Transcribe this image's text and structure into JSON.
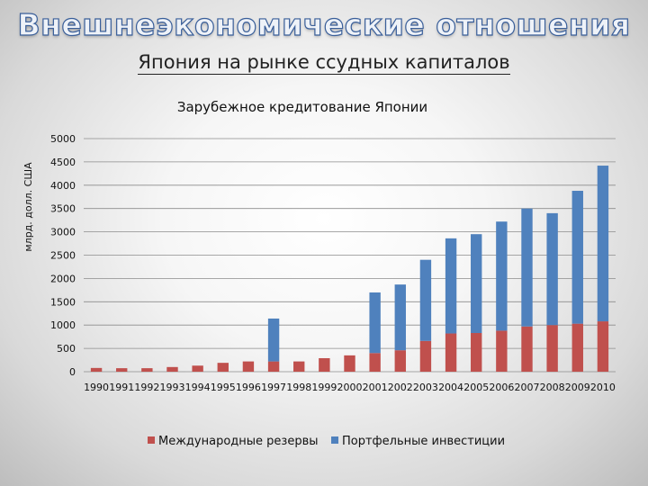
{
  "slide": {
    "title": "Внешнеэкономические отношения",
    "subtitle": "Япония на рынке ссудных капиталов"
  },
  "colors": {
    "reserves": "#c0504d",
    "investments": "#4f81bd",
    "grid": "#8c8c8c",
    "title_fill": "#eef2f8",
    "title_stroke": "#3a5f9a"
  },
  "chart_data": {
    "type": "bar",
    "stacked": true,
    "title": "Зарубежное кредитование Японии",
    "xlabel": "",
    "ylabel": "млрд. долл. США",
    "ylim": [
      0,
      5000
    ],
    "yticks": [
      0,
      500,
      1000,
      1500,
      2000,
      2500,
      3000,
      3500,
      4000,
      4500,
      5000
    ],
    "grid": true,
    "legend_position": "bottom",
    "categories": [
      "1990",
      "1991",
      "1992",
      "1993",
      "1994",
      "1995",
      "1996",
      "1997",
      "1998",
      "1999",
      "2000",
      "2001",
      "2002",
      "2003",
      "2004",
      "2005",
      "2006",
      "2007",
      "2008",
      "2009",
      "2010"
    ],
    "series": [
      {
        "name": "Международные резервы",
        "color": "#c0504d",
        "values": [
          80,
          75,
          75,
          100,
          130,
          190,
          220,
          220,
          220,
          290,
          350,
          400,
          460,
          660,
          820,
          830,
          880,
          970,
          1000,
          1030,
          1080
        ]
      },
      {
        "name": "Портфельные инвестиции",
        "color": "#4f81bd",
        "values": [
          0,
          0,
          0,
          0,
          0,
          0,
          0,
          920,
          0,
          0,
          0,
          1300,
          1410,
          1740,
          2040,
          2120,
          2340,
          2530,
          2400,
          2850,
          3340
        ]
      }
    ]
  }
}
